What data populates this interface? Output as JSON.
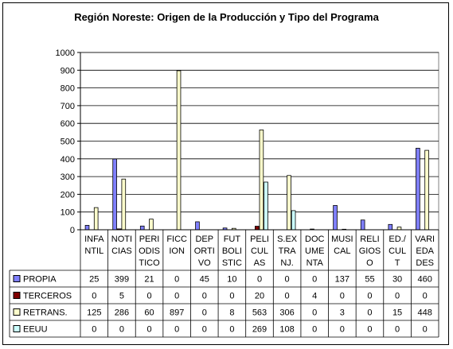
{
  "chart_data": {
    "type": "bar",
    "title": "Región Noreste: Origen de la Producción y Tipo del Programa",
    "xlabel": "",
    "ylabel": "",
    "ylim": [
      0,
      1000
    ],
    "yticks": [
      0,
      100,
      200,
      300,
      400,
      500,
      600,
      700,
      800,
      900,
      1000
    ],
    "grid": true,
    "legend": "table-left",
    "categories": [
      [
        "INFA",
        "NTIL"
      ],
      [
        "NOTI",
        "CIAS"
      ],
      [
        "PERI",
        "ODIS",
        "TICO"
      ],
      [
        "FICC",
        "ION"
      ],
      [
        "DEP",
        "ORTI",
        "VO"
      ],
      [
        "FUT",
        "BOLI",
        "STIC"
      ],
      [
        "PELI",
        "CUL",
        "AS"
      ],
      [
        "S.EX",
        "TRA",
        "NJ."
      ],
      [
        "DOC",
        "UME",
        "NTA"
      ],
      [
        "MUSI",
        "CAL"
      ],
      [
        "RELI",
        "GIOS",
        "O"
      ],
      [
        "ED./",
        "CUL",
        "T"
      ],
      [
        "VARI",
        "EDA",
        "DES"
      ]
    ],
    "series": [
      {
        "name": "PROPIA",
        "color": "#8080ff",
        "values": [
          25,
          399,
          21,
          0,
          45,
          10,
          0,
          0,
          0,
          137,
          55,
          30,
          460
        ]
      },
      {
        "name": "TERCEROS",
        "color": "#800000",
        "values": [
          0,
          5,
          0,
          0,
          0,
          0,
          20,
          0,
          4,
          0,
          0,
          0,
          0
        ]
      },
      {
        "name": "RETRANS.",
        "color": "#ffffcc",
        "values": [
          125,
          286,
          60,
          897,
          0,
          8,
          563,
          306,
          0,
          3,
          0,
          15,
          448
        ]
      },
      {
        "name": "EEUU",
        "color": "#ccffff",
        "values": [
          0,
          0,
          0,
          0,
          0,
          0,
          269,
          108,
          0,
          0,
          0,
          0,
          0
        ]
      }
    ]
  }
}
